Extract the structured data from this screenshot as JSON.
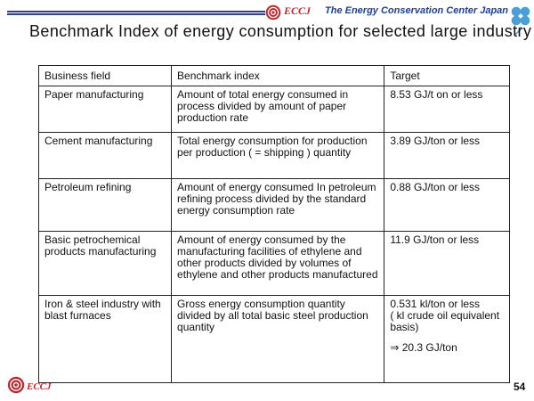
{
  "header": {
    "logo_text": "ECCJ",
    "org_name": "The Energy Conservation Center Japan"
  },
  "title": "Benchmark Index of energy consumption for selected large industry",
  "table": {
    "headers": [
      "Business field",
      "Benchmark index",
      "Target"
    ],
    "rows": [
      {
        "field": "Paper manufacturing",
        "index": "Amount of total energy consumed in process divided by amount of paper production rate",
        "target": "8.53 GJ/t on or less"
      },
      {
        "field": "Cement manufacturing",
        "index": "Total energy consumption for production per production ( = shipping ) quantity",
        "target": "3.89 GJ/ton or less"
      },
      {
        "field": "Petroleum refining",
        "index": "Amount of energy consumed In petroleum refining process divided by the standard energy consumption rate",
        "target": "0.88 GJ/ton or less"
      },
      {
        "field": "Basic petrochemical products manufacturing",
        "index": "Amount of energy consumed by the manufacturing facilities of ethylene and other products divided by volumes of ethylene and other products manufactured",
        "target": "11.9 GJ/ton or less"
      },
      {
        "field": "Iron & steel industry with blast furnaces",
        "index": "Gross energy consumption quantity divided by all total basic steel production quantity",
        "target": "0.531 kl/ton or less",
        "target_note": "( kl crude oil equivalent basis)",
        "target_extra": "⇒ 20.3 GJ/ton"
      }
    ]
  },
  "footer": {
    "logo_text": "ECCJ",
    "page_number": "54"
  },
  "colors": {
    "brand_red": "#c0282d",
    "brand_blue": "#1d3f9b",
    "clover_blue": "#4a9fd8"
  }
}
